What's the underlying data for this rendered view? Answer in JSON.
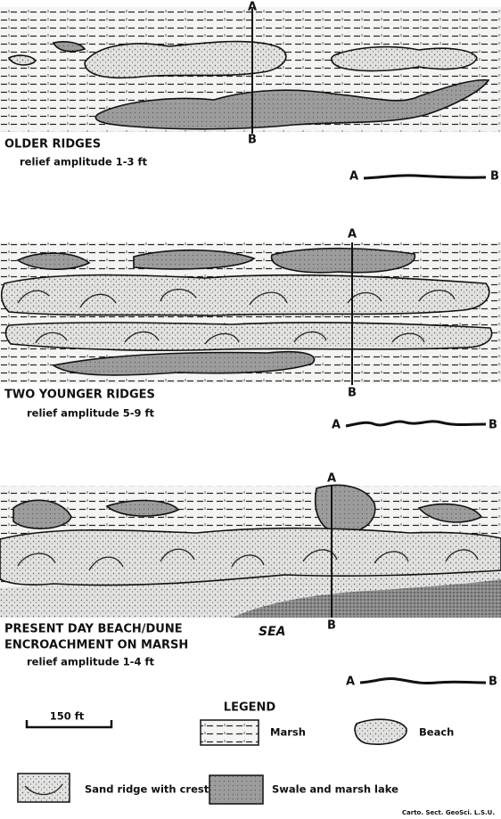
{
  "panels": [
    {
      "section_top": "A",
      "section_bottom": "B",
      "title_lines": [
        "OLDER RIDGES"
      ],
      "subtitle": "relief amplitude 1-3 ft",
      "profile_start": "A",
      "profile_end": "B"
    },
    {
      "section_top": "A",
      "section_bottom": "B",
      "title_lines": [
        "TWO YOUNGER RIDGES"
      ],
      "subtitle": "relief amplitude 5-9 ft",
      "profile_start": "A",
      "profile_end": "B"
    },
    {
      "section_top": "A",
      "section_bottom": "B",
      "title_lines": [
        "PRESENT DAY BEACH/DUNE",
        "ENCROACHMENT ON MARSH"
      ],
      "subtitle": "relief amplitude 1-4 ft",
      "profile_start": "A",
      "profile_end": "B"
    }
  ],
  "sea_label": "SEA",
  "legend": {
    "title": "LEGEND",
    "scale": "150 ft",
    "marsh": "Marsh",
    "beach": "Beach",
    "sand_ridge": "Sand ridge with crest line",
    "swale": "Swale and marsh lake"
  },
  "credit": "Carto. Sect. GeoSci. L.S.U."
}
